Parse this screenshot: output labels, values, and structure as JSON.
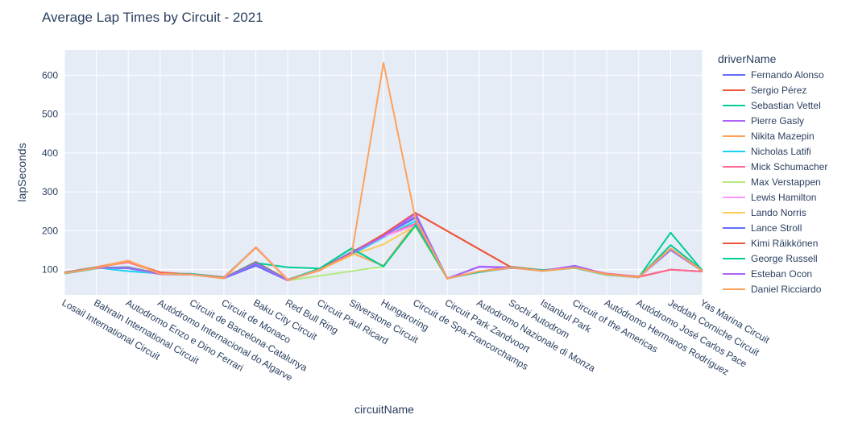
{
  "chart_data": {
    "type": "line",
    "title": "Average Lap Times by Circuit - 2021",
    "xlabel": "circuitName",
    "ylabel": "lapSeconds",
    "ylim": [
      35,
      665
    ],
    "yticks": [
      100,
      200,
      300,
      400,
      500,
      600
    ],
    "legend_title": "driverName",
    "legend_position": "right",
    "grid": true,
    "colors": {
      "plot_bg": "#e5ecf6",
      "grid": "#ffffff",
      "text": "#2a3f5f"
    },
    "categories": [
      "Losail International Circuit",
      "Bahrain International Circuit",
      "Autodromo Enzo e Dino Ferrari",
      "Autódromo Internacional do Algarve",
      "Circuit de Barcelona-Catalunya",
      "Circuit de Monaco",
      "Baku City Circuit",
      "Red Bull Ring",
      "Circuit Paul Ricard",
      "Silverstone Circuit",
      "Hungaroring",
      "Circuit de Spa-Francorchamps",
      "Circuit Park Zandvoort",
      "Autodromo Nazionale di Monza",
      "Sochi Autodrom",
      "Istanbul Park",
      "Circuit of the Americas",
      "Autódromo Hermanos Rodríguez",
      "Autódromo José Carlos Pace",
      "Jeddah Corniche Circuit",
      "Yas Marina Circuit"
    ],
    "series": [
      {
        "name": "Fernando Alonso",
        "color": "#636efa",
        "values": [
          91,
          105,
          103,
          89,
          87,
          78,
          112,
          72,
          101,
          143,
          186,
          245,
          77,
          94,
          104,
          98,
          107,
          88,
          80,
          150,
          96
        ]
      },
      {
        "name": "Sergio Pérez",
        "color": "#ef553b",
        "values": [
          92,
          104,
          121,
          93,
          88,
          79,
          120,
          74,
          98,
          141,
          190,
          246,
          null,
          null,
          106,
          97,
          105,
          87,
          81,
          100,
          95
        ]
      },
      {
        "name": "Sebastian Vettel",
        "color": "#00cc96",
        "values": [
          90,
          103,
          105,
          88,
          87,
          79,
          117,
          106,
          103,
          155,
          108,
          216,
          77,
          95,
          106,
          97,
          104,
          86,
          80,
          163,
          98
        ]
      },
      {
        "name": "Pierre Gasly",
        "color": "#ab63fa",
        "values": [
          91,
          104,
          106,
          89,
          87,
          79,
          118,
          72,
          100,
          142,
          187,
          236,
          77,
          108,
          106,
          97,
          109,
          88,
          80,
          151,
          96
        ]
      },
      {
        "name": "Nikita Mazepin",
        "color": "#ffa15a",
        "values": [
          93,
          107,
          123,
          91,
          89,
          81,
          157,
          75,
          101,
          143,
          110,
          219,
          78,
          95,
          108,
          99,
          106,
          89,
          82,
          153,
          98
        ]
      },
      {
        "name": "Nicholas Latifi",
        "color": "#19d3f3",
        "values": [
          92,
          105,
          96,
          90,
          89,
          80,
          158,
          73,
          102,
          138,
          183,
          225,
          78,
          93,
          106,
          99,
          106,
          89,
          81,
          151,
          97
        ]
      },
      {
        "name": "Mick Schumacher",
        "color": "#ff6692",
        "values": [
          93,
          106,
          119,
          91,
          88,
          80,
          156,
          74,
          100,
          144,
          186,
          218,
          78,
          95,
          107,
          98,
          106,
          90,
          82,
          100,
          95
        ]
      },
      {
        "name": "Max Verstappen",
        "color": "#b6e880",
        "values": [
          91,
          104,
          105,
          88,
          87,
          78,
          116,
          72,
          null,
          null,
          108,
          211,
          77,
          94,
          105,
          96,
          105,
          87,
          80,
          152,
          96
        ]
      },
      {
        "name": "Lewis Hamilton",
        "color": "#ff97ff",
        "values": [
          91,
          104,
          106,
          88,
          87,
          78,
          158,
          74,
          102,
          142,
          185,
          214,
          77,
          94,
          105,
          97,
          106,
          88,
          80,
          152,
          96
        ]
      },
      {
        "name": "Lando Norris",
        "color": "#fecb52",
        "values": [
          91,
          104,
          106,
          89,
          87,
          77,
          157,
          73,
          99,
          137,
          165,
          212,
          77,
          94,
          105,
          97,
          105,
          87,
          80,
          152,
          96
        ]
      },
      {
        "name": "Lance Stroll",
        "color": "#636efa",
        "values": [
          92,
          104,
          106,
          89,
          87,
          78,
          110,
          72,
          101,
          145,
          188,
          233,
          77,
          95,
          106,
          97,
          106,
          88,
          80,
          153,
          96
        ]
      },
      {
        "name": "Kimi Räikkönen",
        "color": "#ef553b",
        "values": [
          92,
          105,
          106,
          90,
          88,
          79,
          119,
          73,
          101,
          143,
          191,
          246,
          null,
          null,
          106,
          98,
          106,
          88,
          81,
          154,
          96
        ]
      },
      {
        "name": "George Russell",
        "color": "#00cc96",
        "values": [
          92,
          105,
          106,
          89,
          88,
          79,
          118,
          73,
          103,
          154,
          108,
          214,
          78,
          94,
          106,
          98,
          106,
          88,
          80,
          195,
          97
        ]
      },
      {
        "name": "Esteban Ocon",
        "color": "#ab63fa",
        "values": [
          91,
          104,
          105,
          88,
          87,
          78,
          116,
          72,
          100,
          142,
          186,
          243,
          77,
          107,
          105,
          97,
          110,
          88,
          80,
          152,
          96
        ]
      },
      {
        "name": "Daniel Ricciardo",
        "color": "#ffa15a",
        "values": [
          91,
          104,
          122,
          89,
          87,
          78,
          157,
          72,
          100,
          139,
          632,
          231,
          77,
          96,
          105,
          97,
          105,
          88,
          80,
          155,
          96
        ]
      }
    ]
  }
}
